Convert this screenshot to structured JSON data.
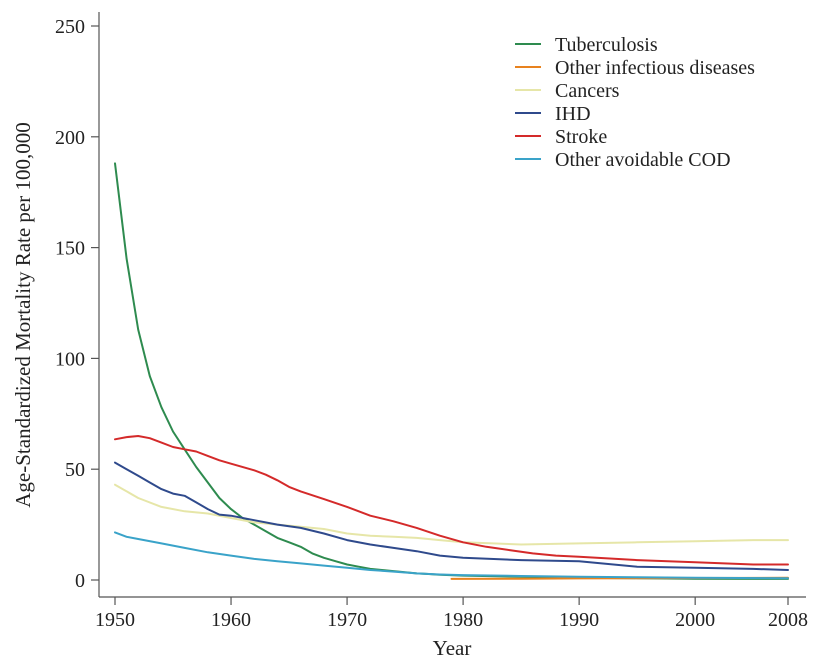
{
  "chart_data": {
    "type": "line",
    "xlabel": "Year",
    "ylabel": "Age-Standardized Mortality Rate per 100,000",
    "xlim": [
      1950,
      2008
    ],
    "ylim": [
      0,
      250
    ],
    "xticks": [
      1950,
      1960,
      1970,
      1980,
      1990,
      2000,
      2008
    ],
    "yticks": [
      0,
      50,
      100,
      150,
      200,
      250
    ],
    "grid": false,
    "legend_position": "top-right",
    "series": [
      {
        "name": "Tuberculosis",
        "color": "#2e8b4f",
        "points": [
          [
            1950,
            188
          ],
          [
            1951,
            145
          ],
          [
            1952,
            113
          ],
          [
            1953,
            92
          ],
          [
            1954,
            78
          ],
          [
            1955,
            67
          ],
          [
            1956,
            59
          ],
          [
            1957,
            51
          ],
          [
            1958,
            44
          ],
          [
            1959,
            37
          ],
          [
            1960,
            32
          ],
          [
            1961,
            28
          ],
          [
            1962,
            25
          ],
          [
            1963,
            22
          ],
          [
            1964,
            19
          ],
          [
            1965,
            17
          ],
          [
            1966,
            15
          ],
          [
            1967,
            12
          ],
          [
            1968,
            10
          ],
          [
            1969,
            8.5
          ],
          [
            1970,
            7
          ],
          [
            1971,
            6
          ],
          [
            1972,
            5
          ],
          [
            1973,
            4.5
          ],
          [
            1974,
            4
          ],
          [
            1975,
            3.5
          ],
          [
            1976,
            3
          ],
          [
            1977,
            2.7
          ],
          [
            1978,
            2.4
          ],
          [
            1980,
            2
          ],
          [
            1985,
            1.5
          ],
          [
            1990,
            1
          ],
          [
            1995,
            0.8
          ],
          [
            2000,
            0.6
          ],
          [
            2008,
            0.5
          ]
        ]
      },
      {
        "name": "Other infectious diseases",
        "color": "#e8821e",
        "points": [
          [
            1979,
            0.5
          ],
          [
            1985,
            0.6
          ],
          [
            1990,
            0.7
          ],
          [
            1995,
            0.8
          ],
          [
            2000,
            0.9
          ],
          [
            2008,
            1
          ]
        ]
      },
      {
        "name": "Cancers",
        "color": "#e6e6a8",
        "points": [
          [
            1950,
            43
          ],
          [
            1952,
            37
          ],
          [
            1954,
            33
          ],
          [
            1956,
            31
          ],
          [
            1958,
            30
          ],
          [
            1960,
            28
          ],
          [
            1962,
            26
          ],
          [
            1964,
            25
          ],
          [
            1966,
            24
          ],
          [
            1968,
            23
          ],
          [
            1970,
            21
          ],
          [
            1972,
            20
          ],
          [
            1974,
            19.5
          ],
          [
            1976,
            19
          ],
          [
            1978,
            18
          ],
          [
            1980,
            17
          ],
          [
            1985,
            16
          ],
          [
            1990,
            16.5
          ],
          [
            1995,
            17
          ],
          [
            2000,
            17.5
          ],
          [
            2005,
            18
          ],
          [
            2008,
            18
          ]
        ]
      },
      {
        "name": "IHD",
        "color": "#2f4a8c",
        "points": [
          [
            1950,
            53
          ],
          [
            1951,
            50
          ],
          [
            1952,
            47
          ],
          [
            1953,
            44
          ],
          [
            1954,
            41
          ],
          [
            1955,
            39
          ],
          [
            1956,
            38
          ],
          [
            1957,
            35
          ],
          [
            1958,
            32
          ],
          [
            1959,
            29.5
          ],
          [
            1960,
            29
          ],
          [
            1962,
            27
          ],
          [
            1964,
            25
          ],
          [
            1966,
            23.5
          ],
          [
            1968,
            21
          ],
          [
            1970,
            18
          ],
          [
            1972,
            16
          ],
          [
            1974,
            14.5
          ],
          [
            1976,
            13
          ],
          [
            1978,
            11
          ],
          [
            1980,
            10
          ],
          [
            1985,
            9
          ],
          [
            1990,
            8.5
          ],
          [
            1995,
            6
          ],
          [
            2000,
            5.5
          ],
          [
            2005,
            5
          ],
          [
            2008,
            4.5
          ]
        ]
      },
      {
        "name": "Stroke",
        "color": "#d42a2a",
        "points": [
          [
            1950,
            63.5
          ],
          [
            1951,
            64.5
          ],
          [
            1952,
            65
          ],
          [
            1953,
            64
          ],
          [
            1954,
            62
          ],
          [
            1955,
            60
          ],
          [
            1956,
            59
          ],
          [
            1957,
            58
          ],
          [
            1958,
            56
          ],
          [
            1959,
            54
          ],
          [
            1960,
            52.5
          ],
          [
            1962,
            49.5
          ],
          [
            1963,
            47.5
          ],
          [
            1964,
            45
          ],
          [
            1965,
            42
          ],
          [
            1966,
            40
          ],
          [
            1968,
            36.5
          ],
          [
            1970,
            33
          ],
          [
            1972,
            29
          ],
          [
            1974,
            26.5
          ],
          [
            1976,
            23.5
          ],
          [
            1978,
            20
          ],
          [
            1980,
            17
          ],
          [
            1982,
            15
          ],
          [
            1984,
            13.5
          ],
          [
            1986,
            12
          ],
          [
            1988,
            11
          ],
          [
            1990,
            10.5
          ],
          [
            1995,
            9
          ],
          [
            2000,
            8
          ],
          [
            2005,
            7
          ],
          [
            2008,
            7
          ]
        ]
      },
      {
        "name": "Other avoidable COD",
        "color": "#3aa3c9",
        "points": [
          [
            1950,
            21.5
          ],
          [
            1951,
            19.5
          ],
          [
            1952,
            18.5
          ],
          [
            1954,
            16.5
          ],
          [
            1956,
            14.5
          ],
          [
            1958,
            12.5
          ],
          [
            1960,
            11
          ],
          [
            1962,
            9.5
          ],
          [
            1964,
            8.5
          ],
          [
            1966,
            7.5
          ],
          [
            1968,
            6.5
          ],
          [
            1970,
            5.5
          ],
          [
            1972,
            4.5
          ],
          [
            1974,
            3.8
          ],
          [
            1976,
            3
          ],
          [
            1978,
            2.5
          ],
          [
            1980,
            2.2
          ],
          [
            1985,
            1.8
          ],
          [
            1990,
            1.5
          ],
          [
            1995,
            1.2
          ],
          [
            2000,
            1
          ],
          [
            2008,
            0.8
          ]
        ]
      }
    ]
  }
}
